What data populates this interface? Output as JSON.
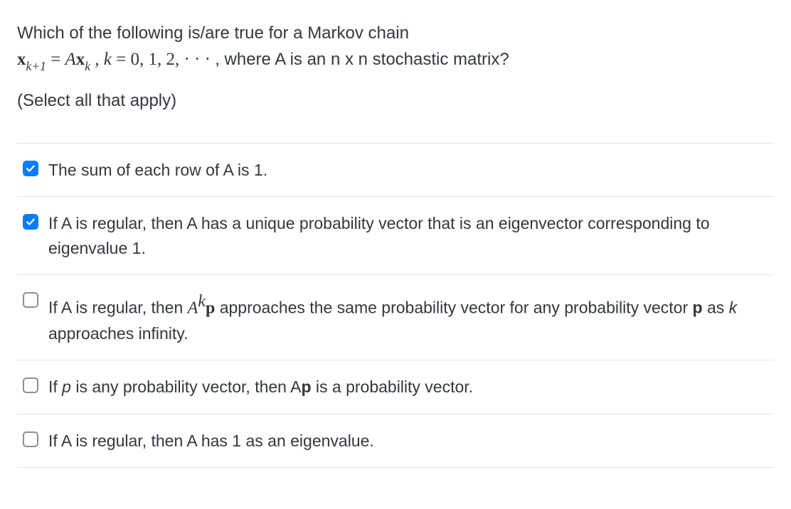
{
  "question": {
    "line1_pre": "Which of the following is/are true for a Markov chain",
    "line2_math_x": "x",
    "line2_math_sub1": "k+1",
    "line2_math_eq": " = ",
    "line2_math_A": "A",
    "line2_math_x2": "x",
    "line2_math_sub2": "k",
    "line2_math_comma": " ,  ",
    "line2_math_k": "k",
    "line2_math_vals": " = 0, 1, 2, · · · ",
    "line2_tail": ", where A is an n x n stochastic matrix?",
    "instruction": "(Select all that apply)"
  },
  "options": [
    {
      "checked": true,
      "parts": [
        {
          "text": "The sum of each row of A is 1.",
          "type": "text"
        }
      ]
    },
    {
      "checked": true,
      "parts": [
        {
          "text": "If A is regular, then A has a unique probability vector that is an eigenvector corresponding to eigenvalue 1.",
          "type": "text"
        }
      ]
    },
    {
      "checked": false,
      "parts": [
        {
          "text": "If A is regular, then ",
          "type": "text"
        },
        {
          "text": "A",
          "type": "mathit"
        },
        {
          "text": "k",
          "type": "mathsup"
        },
        {
          "text": "p",
          "type": "mathbold"
        },
        {
          "text": " approaches the same probability vector for any probability vector ",
          "type": "text"
        },
        {
          "text": "p",
          "type": "bold"
        },
        {
          "text": " as ",
          "type": "text"
        },
        {
          "text": "k",
          "type": "italic"
        },
        {
          "text": " approaches infinity.",
          "type": "text"
        }
      ]
    },
    {
      "checked": false,
      "parts": [
        {
          "text": "If ",
          "type": "text"
        },
        {
          "text": "p",
          "type": "italic"
        },
        {
          "text": " is any probability vector, then A",
          "type": "text"
        },
        {
          "text": "p",
          "type": "bold"
        },
        {
          "text": " is a probability vector.",
          "type": "text"
        }
      ]
    },
    {
      "checked": false,
      "parts": [
        {
          "text": "If A is regular, then A has 1 as an eigenvalue.",
          "type": "text"
        }
      ]
    }
  ],
  "colors": {
    "accent": "#0a7cff",
    "border": "#e5e7ea",
    "text": "#333740",
    "checkbox_border": "#8a8f98"
  }
}
